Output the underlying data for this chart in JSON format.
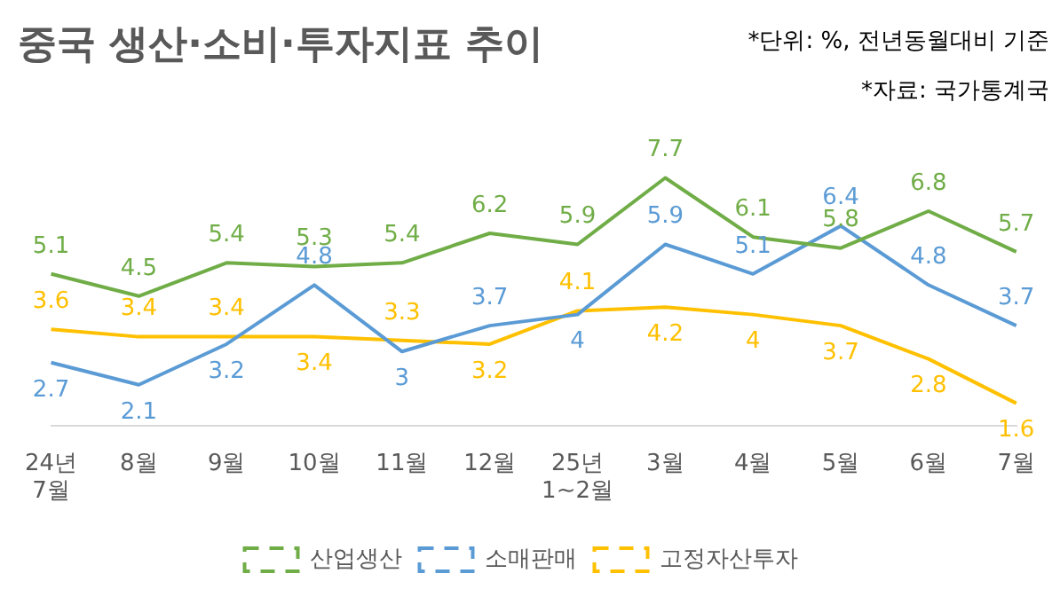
{
  "chart_data": {
    "type": "line",
    "title": "중국 생산·소비·투자지표 추이",
    "annotations": [
      "*단위: %, 전년동월대비 기준",
      "*자료: 국가통계국"
    ],
    "categories": [
      "24년 7월",
      "8월",
      "9월",
      "10월",
      "11월",
      "12월",
      "25년 1~2월",
      "3월",
      "4월",
      "5월",
      "6월",
      "7월"
    ],
    "series": [
      {
        "name": "산업생산",
        "color": "#70ad47",
        "values": [
          5.1,
          4.5,
          5.4,
          5.3,
          5.4,
          6.2,
          5.9,
          7.7,
          6.1,
          5.8,
          6.8,
          5.7
        ]
      },
      {
        "name": "소매판매",
        "color": "#5b9bd5",
        "values": [
          2.7,
          2.1,
          3.2,
          4.8,
          3,
          3.7,
          4,
          5.9,
          5.1,
          6.4,
          4.8,
          3.7
        ]
      },
      {
        "name": "고정자산투자",
        "color": "#ffc000",
        "values": [
          3.6,
          3.4,
          3.4,
          3.4,
          3.3,
          3.2,
          4.1,
          4.2,
          4,
          3.7,
          2.8,
          1.6
        ]
      }
    ],
    "data_labels": true,
    "legend": "bottom",
    "grid": false,
    "tick_labels": "x",
    "marker": "none",
    "line_style": "solid"
  }
}
